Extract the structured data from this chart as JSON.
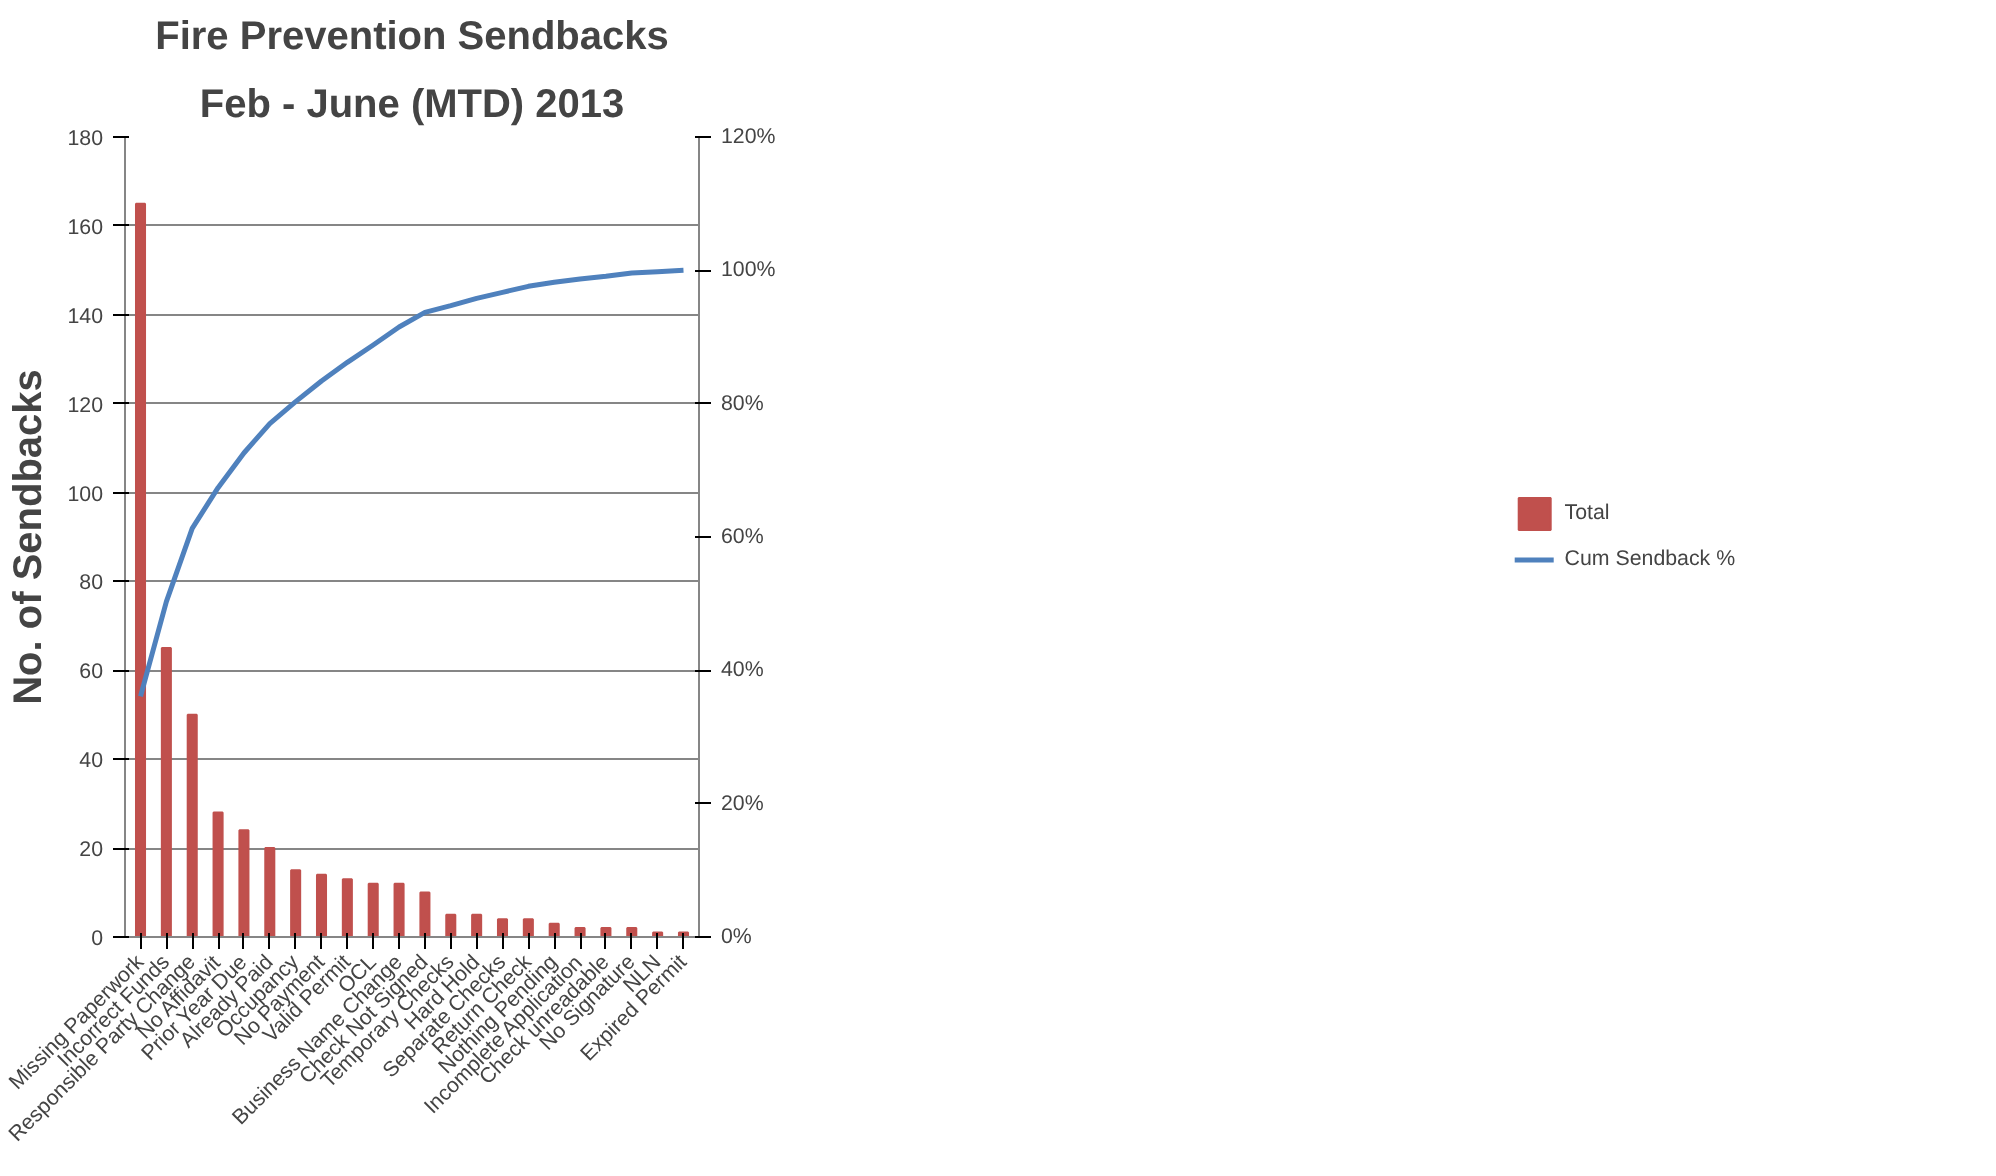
{
  "chart_data": {
    "type": "bar",
    "title": "Fire Prevention Sendbacks",
    "subtitle": "Feb - June (MTD) 2013",
    "ylabel": "No. of Sendbacks",
    "categories": [
      "Missing Paperwork",
      "Incorrect Funds",
      "Responsible Party Change",
      "No Affidavit",
      "Prior Year Due",
      "Already Paid",
      "Occupancy",
      "No Payment",
      "Valid Permit",
      "OCL",
      "Business Name Change",
      "Check Not Signed",
      "Temporary Checks",
      "Hard Hold",
      "Separate Checks",
      "Return Check",
      "Nothing Pending",
      "Incomplete Application",
      "Check unreadable",
      "No Signature",
      "NLN",
      "Expired Permit"
    ],
    "series": [
      {
        "name": "Total",
        "color": "#c0504d",
        "values": [
          165,
          65,
          50,
          28,
          24,
          20,
          15,
          14,
          13,
          12,
          12,
          10,
          5,
          5,
          4,
          4,
          3,
          2,
          2,
          2,
          1,
          1
        ]
      },
      {
        "name": "Cum Sendback %",
        "type": "line",
        "axis": "y2",
        "color": "#4f81bd",
        "values": [
          36.1,
          50.3,
          61.3,
          67.4,
          72.6,
          77.0,
          80.3,
          83.4,
          86.2,
          88.8,
          91.5,
          93.7,
          94.7,
          95.8,
          96.7,
          97.6,
          98.2,
          98.7,
          99.1,
          99.6,
          99.8,
          100
        ]
      }
    ],
    "ylim": [
      0,
      180
    ],
    "yticks": [
      0,
      20,
      40,
      60,
      80,
      100,
      120,
      140,
      160,
      180
    ],
    "y2lim": [
      0,
      120
    ],
    "y2ticks": [
      {
        "value": 0,
        "label": "0%"
      },
      {
        "value": 20,
        "label": "20%"
      },
      {
        "value": 40,
        "label": "40%"
      },
      {
        "value": 60,
        "label": "60%"
      },
      {
        "value": 80,
        "label": "80%"
      },
      {
        "value": 100,
        "label": "100%"
      },
      {
        "value": 120,
        "label": "120%"
      }
    ],
    "grid": "y",
    "legend": "right",
    "marker": "none",
    "line_style": "solid"
  }
}
